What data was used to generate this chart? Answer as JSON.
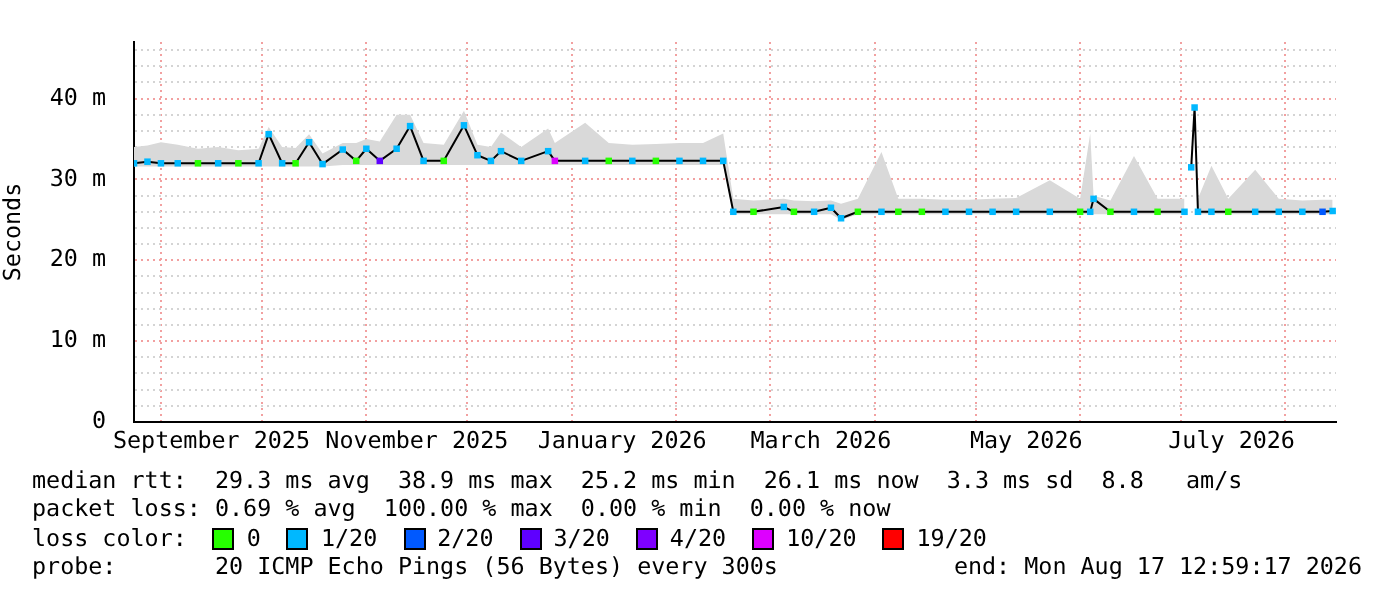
{
  "chart_data": {
    "type": "line",
    "ylabel": "Seconds",
    "legend_title": "loss color:",
    "legend": "bottom",
    "grid": true,
    "x": [
      "2025-08-24",
      "2025-08-28",
      "2025-09-01",
      "2025-09-06",
      "2025-09-12",
      "2025-09-18",
      "2025-09-24",
      "2025-09-30",
      "2025-10-03",
      "2025-10-07",
      "2025-10-11",
      "2025-10-15",
      "2025-10-19",
      "2025-10-25",
      "2025-10-29",
      "2025-11-01",
      "2025-11-05",
      "2025-11-10",
      "2025-11-14",
      "2025-11-18",
      "2025-11-24",
      "2025-11-30",
      "2025-12-04",
      "2025-12-08",
      "2025-12-11",
      "2025-12-17",
      "2025-12-25",
      "2025-12-27",
      "2026-01-05",
      "2026-01-12",
      "2026-01-19",
      "2026-01-26",
      "2026-02-02",
      "2026-02-09",
      "2026-02-15",
      "2026-02-18",
      "2026-02-24",
      "2026-03-05",
      "2026-03-08",
      "2026-03-14",
      "2026-03-19",
      "2026-03-22",
      "2026-03-27",
      "2026-04-03",
      "2026-04-08",
      "2026-04-15",
      "2026-04-22",
      "2026-04-29",
      "2026-05-06",
      "2026-05-13",
      "2026-05-23",
      "2026-06-01",
      "2026-06-04",
      "2026-06-05",
      "2026-06-10",
      "2026-06-17",
      "2026-06-24",
      "2026-07-02",
      "2026-07-03",
      "2026-07-04",
      "2026-07-05",
      "2026-07-06",
      "2026-07-10",
      "2026-07-15",
      "2026-07-23",
      "2026-07-30",
      "2026-08-06",
      "2026-08-12",
      "2026-08-15"
    ],
    "xlim": [
      "2025-08-24",
      "2026-08-16"
    ],
    "xticks": [
      {
        "value": "2025-09-01",
        "label": null
      },
      {
        "value": "2025-09-16",
        "label": "September 2025"
      },
      {
        "value": "2025-10-01",
        "label": null
      },
      {
        "value": "2025-11-01",
        "label": null
      },
      {
        "value": "2025-11-16",
        "label": "November 2025"
      },
      {
        "value": "2025-12-01",
        "label": null
      },
      {
        "value": "2026-01-01",
        "label": null
      },
      {
        "value": "2026-01-16",
        "label": "January 2026"
      },
      {
        "value": "2026-02-01",
        "label": null
      },
      {
        "value": "2026-03-01",
        "label": null
      },
      {
        "value": "2026-03-16",
        "label": "March 2026"
      },
      {
        "value": "2026-04-01",
        "label": null
      },
      {
        "value": "2026-05-01",
        "label": null
      },
      {
        "value": "2026-05-16",
        "label": "May 2026"
      },
      {
        "value": "2026-06-01",
        "label": null
      },
      {
        "value": "2026-07-01",
        "label": null
      },
      {
        "value": "2026-07-16",
        "label": "July 2026"
      },
      {
        "value": "2026-08-01",
        "label": null
      }
    ],
    "ylim": [
      0,
      47
    ],
    "yticks": [
      0,
      {
        "value": 2,
        "label": null
      },
      {
        "value": 4,
        "label": null
      },
      {
        "value": 6,
        "label": null
      },
      {
        "value": 8,
        "label": null
      },
      {
        "value": 10,
        "label": "10 m"
      },
      {
        "value": 12,
        "label": null
      },
      {
        "value": 14,
        "label": null
      },
      {
        "value": 16,
        "label": null
      },
      {
        "value": 18,
        "label": null
      },
      {
        "value": 20,
        "label": "20 m"
      },
      {
        "value": 22,
        "label": null
      },
      {
        "value": 24,
        "label": null
      },
      {
        "value": 26,
        "label": null
      },
      {
        "value": 28,
        "label": null
      },
      {
        "value": 30,
        "label": "30 m"
      },
      {
        "value": 32,
        "label": null
      },
      {
        "value": 34,
        "label": null
      },
      {
        "value": 36,
        "label": null
      },
      {
        "value": 38,
        "label": null
      },
      {
        "value": 40,
        "label": "40 m"
      },
      {
        "value": 42,
        "label": null
      },
      {
        "value": 44,
        "label": null
      },
      {
        "value": 46,
        "label": null
      }
    ],
    "series": [
      {
        "color": "#000000",
        "values": [
          32.0,
          32.2,
          32.0,
          32.0,
          32.0,
          32.0,
          32.0,
          32.0,
          35.6,
          32.0,
          32.0,
          34.6,
          31.9,
          33.7,
          32.3,
          33.8,
          32.3,
          33.8,
          36.6,
          32.3,
          32.3,
          36.7,
          33.0,
          32.3,
          33.5,
          32.3,
          33.5,
          32.3,
          32.3,
          32.3,
          32.3,
          32.3,
          32.3,
          32.3,
          32.3,
          26.0,
          26.0,
          26.6,
          26.0,
          26.0,
          26.5,
          25.2,
          26.0,
          26.0,
          26.0,
          26.0,
          26.0,
          26.0,
          26.0,
          26.0,
          26.0,
          26.0,
          26.0,
          27.6,
          26.0,
          26.0,
          26.0,
          26.0,
          null,
          31.5,
          38.9,
          26.0,
          26.0,
          26.0,
          26.0,
          26.0,
          26.0,
          26.0,
          26.1
        ],
        "lower": [
          31.6,
          31.6,
          31.6,
          31.6,
          31.6,
          31.6,
          31.6,
          31.6,
          31.6,
          31.6,
          31.6,
          31.6,
          31.6,
          31.8,
          31.8,
          31.8,
          31.8,
          31.8,
          31.8,
          31.8,
          31.8,
          31.8,
          31.8,
          31.8,
          31.8,
          31.8,
          31.8,
          31.8,
          31.8,
          31.8,
          31.8,
          31.8,
          31.8,
          31.8,
          31.8,
          25.7,
          25.7,
          25.7,
          25.7,
          25.7,
          25.7,
          25.0,
          25.7,
          25.7,
          25.7,
          25.7,
          25.7,
          25.7,
          25.7,
          25.7,
          25.7,
          25.7,
          25.7,
          25.7,
          25.7,
          25.7,
          25.7,
          25.7,
          null,
          31.0,
          38.5,
          25.7,
          25.7,
          25.7,
          25.7,
          25.7,
          25.7,
          25.7,
          25.7
        ],
        "upper": [
          34.0,
          34.2,
          34.6,
          34.3,
          33.8,
          34.0,
          33.6,
          33.8,
          36.5,
          34.0,
          33.9,
          35.6,
          33.2,
          34.5,
          34.5,
          35.0,
          34.7,
          38.0,
          38.0,
          34.5,
          34.3,
          38.5,
          34.3,
          34.0,
          35.8,
          34.0,
          36.3,
          34.5,
          37.0,
          34.5,
          34.3,
          34.4,
          34.5,
          34.5,
          35.7,
          27.6,
          27.4,
          27.6,
          27.4,
          27.3,
          27.4,
          27.0,
          27.6,
          33.4,
          27.6,
          27.6,
          27.5,
          27.5,
          27.6,
          27.7,
          29.9,
          27.6,
          35.7,
          28.0,
          27.4,
          32.9,
          27.6,
          27.6,
          null,
          32.0,
          39.4,
          27.6,
          31.7,
          27.6,
          31.2,
          27.6,
          27.4,
          27.5,
          27.5
        ]
      },
      {
        "type": "scatter",
        "name": "0",
        "color": "#26ff00",
        "marker": "square",
        "x": [
          "2025-09-12",
          "2025-09-24",
          "2025-10-11",
          "2025-10-29",
          "2025-11-24",
          "2026-01-12",
          "2026-01-26",
          "2026-02-24",
          "2026-03-08",
          "2026-03-27",
          "2026-04-08",
          "2026-04-15",
          "2026-06-01",
          "2026-06-10",
          "2026-06-24",
          "2026-07-15"
        ],
        "values": [
          32.0,
          32.0,
          32.0,
          32.3,
          32.3,
          32.3,
          32.3,
          26.0,
          26.0,
          26.0,
          26.0,
          26.0,
          26.0,
          26.0,
          26.0,
          26.0
        ]
      },
      {
        "type": "scatter",
        "name": "1/20",
        "color": "#00b8ff",
        "marker": "square",
        "x": [
          "2025-08-24",
          "2025-08-28",
          "2025-09-01",
          "2025-09-06",
          "2025-09-18",
          "2025-09-30",
          "2025-10-03",
          "2025-10-07",
          "2025-10-15",
          "2025-10-19",
          "2025-10-25",
          "2025-11-01",
          "2025-11-10",
          "2025-11-14",
          "2025-11-18",
          "2025-11-30",
          "2025-12-04",
          "2025-12-08",
          "2025-12-11",
          "2025-12-17",
          "2025-12-25",
          "2026-01-05",
          "2026-01-19",
          "2026-02-02",
          "2026-02-09",
          "2026-02-15",
          "2026-02-18",
          "2026-03-05",
          "2026-03-14",
          "2026-03-19",
          "2026-03-22",
          "2026-04-03",
          "2026-04-22",
          "2026-04-29",
          "2026-05-06",
          "2026-05-13",
          "2026-05-23",
          "2026-06-04",
          "2026-06-05",
          "2026-06-17",
          "2026-07-02",
          "2026-07-04",
          "2026-07-05",
          "2026-07-06",
          "2026-07-10",
          "2026-07-23",
          "2026-07-30",
          "2026-08-06",
          "2026-08-15"
        ],
        "values": [
          32.0,
          32.2,
          32.0,
          32.0,
          32.0,
          32.0,
          35.6,
          32.0,
          34.6,
          31.9,
          33.7,
          33.8,
          33.8,
          36.6,
          32.3,
          36.7,
          33.0,
          32.3,
          33.5,
          32.3,
          33.5,
          32.3,
          32.3,
          32.3,
          32.3,
          32.3,
          26.0,
          26.6,
          26.0,
          26.5,
          25.2,
          26.0,
          26.0,
          26.0,
          26.0,
          26.0,
          26.0,
          26.0,
          27.6,
          26.0,
          26.0,
          31.5,
          38.9,
          26.0,
          26.0,
          26.0,
          26.0,
          26.0,
          26.1
        ]
      },
      {
        "type": "scatter",
        "name": "2/20",
        "color": "#0059ff",
        "marker": "square",
        "x": [
          "2026-08-12"
        ],
        "values": [
          26.0
        ]
      },
      {
        "type": "scatter",
        "name": "3/20",
        "color": "#5e00ff",
        "marker": "square",
        "x": [
          "2025-11-05"
        ],
        "values": [
          32.3
        ]
      },
      {
        "type": "scatter",
        "name": "4/20",
        "color": "#7e00ff",
        "marker": "square",
        "values": [
          null,
          null,
          null,
          null,
          null,
          null,
          null,
          null,
          null,
          null,
          null,
          null,
          null,
          null,
          null,
          null,
          null,
          null,
          null,
          null,
          null,
          null,
          null,
          null,
          null,
          null,
          null,
          null,
          null,
          null,
          null,
          null,
          null,
          null,
          null,
          null,
          null,
          null,
          null,
          null,
          null,
          null,
          null,
          null,
          null,
          null,
          null,
          null,
          null,
          null,
          null,
          null,
          null,
          null,
          null,
          null,
          null,
          null,
          null,
          null,
          null,
          null,
          null,
          null,
          null,
          null,
          null,
          null,
          null
        ]
      },
      {
        "type": "scatter",
        "name": "10/20",
        "color": "#dd00ff",
        "marker": "square",
        "x": [
          "2025-12-27"
        ],
        "values": [
          32.3
        ]
      },
      {
        "type": "scatter",
        "name": "19/20",
        "color": "#ff0000",
        "marker": "square",
        "values": [
          null,
          null,
          null,
          null,
          null,
          null,
          null,
          null,
          null,
          null,
          null,
          null,
          null,
          null,
          null,
          null,
          null,
          null,
          null,
          null,
          null,
          null,
          null,
          null,
          null,
          null,
          null,
          null,
          null,
          null,
          null,
          null,
          null,
          null,
          null,
          null,
          null,
          null,
          null,
          null,
          null,
          null,
          null,
          null,
          null,
          null,
          null,
          null,
          null,
          null,
          null,
          null,
          null,
          null,
          null,
          null,
          null,
          null,
          null,
          null,
          null,
          null,
          null,
          null,
          null,
          null,
          null,
          null,
          null
        ]
      }
    ],
    "annotations": [
      "median rtt:  29.3 ms avg  38.9 ms max  25.2 ms min  26.1 ms now  3.3 ms sd  8.8   am/s",
      "packet loss: 0.69 % avg  100.00 % max  0.00 % min  0.00 % now",
      "probe:       20 ICMP Echo Pings (56 Bytes) every 300s",
      "end: Mon Aug 17 12:59:17 2026"
    ]
  }
}
